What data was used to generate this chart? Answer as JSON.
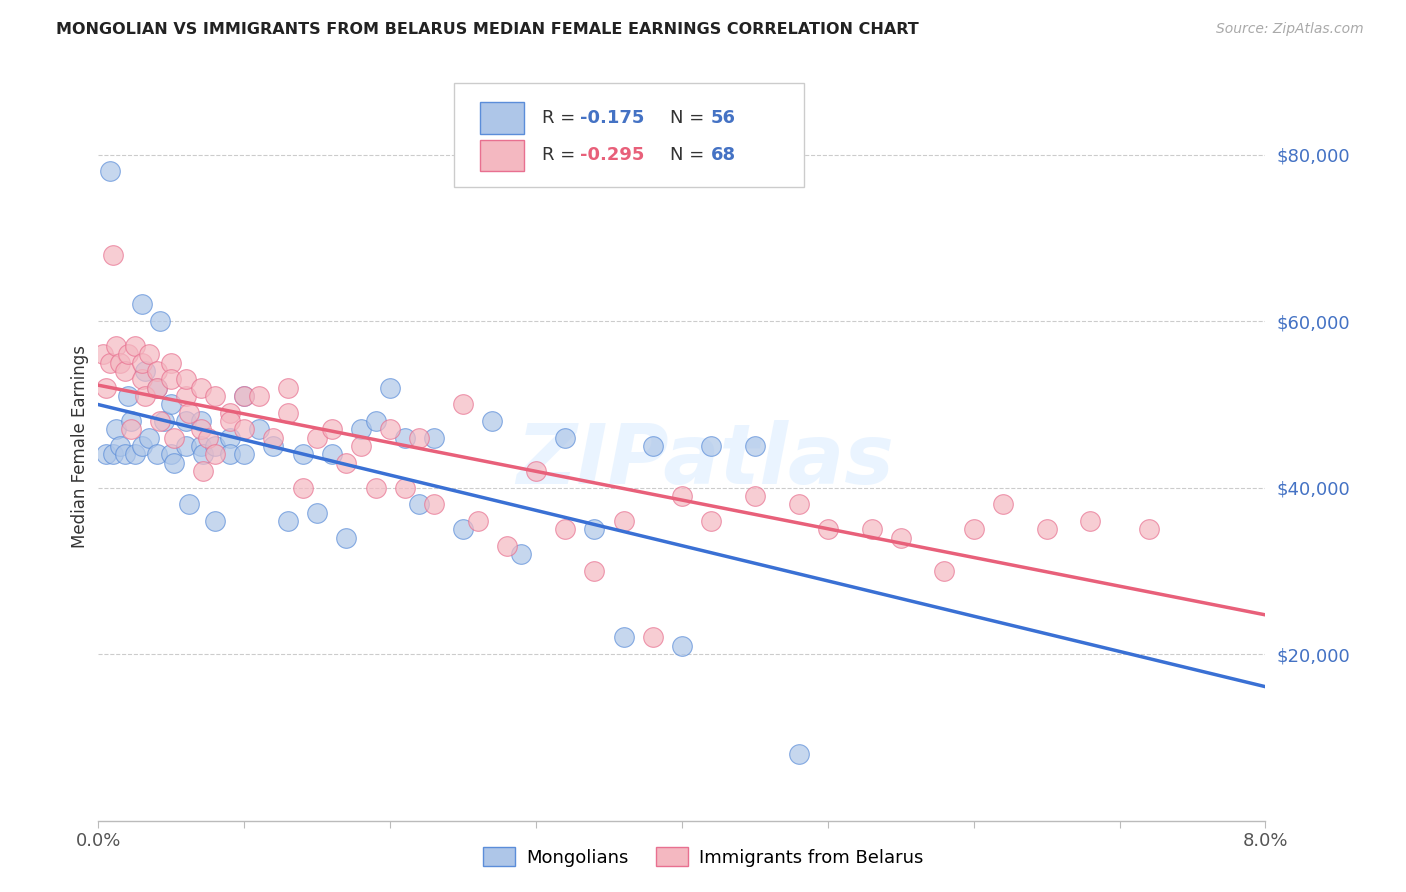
{
  "title": "MONGOLIAN VS IMMIGRANTS FROM BELARUS MEDIAN FEMALE EARNINGS CORRELATION CHART",
  "source": "Source: ZipAtlas.com",
  "ylabel": "Median Female Earnings",
  "xlim": [
    0.0,
    0.08
  ],
  "ylim": [
    0,
    90000
  ],
  "color_mongolian_fill": "#aec6e8",
  "color_mongolian_edge": "#5b8dd9",
  "color_belarus_fill": "#f4b8c1",
  "color_belarus_edge": "#e87090",
  "color_trend_mongolian": "#3a70d4",
  "color_trend_belarus": "#e8607a",
  "color_right_axis": "#4472c4",
  "watermark": "ZIPatlas",
  "legend_row1_R": "R = ",
  "legend_row1_Rval": "-0.175",
  "legend_row1_N": "N = ",
  "legend_row1_Nval": "56",
  "legend_row2_R": "R = ",
  "legend_row2_Rval": "-0.295",
  "legend_row2_N": "N = ",
  "legend_row2_Nval": "68",
  "mongolian_x": [
    0.0005,
    0.0008,
    0.001,
    0.0012,
    0.0015,
    0.0018,
    0.002,
    0.0022,
    0.0025,
    0.003,
    0.003,
    0.0032,
    0.0035,
    0.004,
    0.004,
    0.0042,
    0.0045,
    0.005,
    0.005,
    0.0052,
    0.006,
    0.006,
    0.0062,
    0.007,
    0.007,
    0.0072,
    0.008,
    0.008,
    0.009,
    0.009,
    0.01,
    0.01,
    0.011,
    0.012,
    0.013,
    0.014,
    0.015,
    0.016,
    0.017,
    0.018,
    0.019,
    0.02,
    0.021,
    0.022,
    0.023,
    0.025,
    0.027,
    0.029,
    0.032,
    0.034,
    0.036,
    0.038,
    0.04,
    0.042,
    0.045,
    0.048
  ],
  "mongolian_y": [
    44000,
    78000,
    44000,
    47000,
    45000,
    44000,
    51000,
    48000,
    44000,
    62000,
    45000,
    54000,
    46000,
    52000,
    44000,
    60000,
    48000,
    50000,
    44000,
    43000,
    48000,
    45000,
    38000,
    48000,
    45000,
    44000,
    45000,
    36000,
    46000,
    44000,
    51000,
    44000,
    47000,
    45000,
    36000,
    44000,
    37000,
    44000,
    34000,
    47000,
    48000,
    52000,
    46000,
    38000,
    46000,
    35000,
    48000,
    32000,
    46000,
    35000,
    22000,
    45000,
    21000,
    45000,
    45000,
    8000
  ],
  "belarus_x": [
    0.0003,
    0.0005,
    0.0008,
    0.001,
    0.0012,
    0.0015,
    0.0018,
    0.002,
    0.0022,
    0.0025,
    0.003,
    0.003,
    0.0032,
    0.0035,
    0.004,
    0.004,
    0.0042,
    0.005,
    0.005,
    0.0052,
    0.006,
    0.006,
    0.0062,
    0.007,
    0.007,
    0.0072,
    0.0075,
    0.008,
    0.008,
    0.009,
    0.009,
    0.01,
    0.01,
    0.011,
    0.012,
    0.013,
    0.013,
    0.014,
    0.015,
    0.016,
    0.017,
    0.018,
    0.019,
    0.02,
    0.021,
    0.022,
    0.023,
    0.025,
    0.026,
    0.028,
    0.03,
    0.032,
    0.034,
    0.036,
    0.038,
    0.04,
    0.042,
    0.045,
    0.048,
    0.05,
    0.053,
    0.055,
    0.058,
    0.06,
    0.062,
    0.065,
    0.068,
    0.072
  ],
  "belarus_y": [
    56000,
    52000,
    55000,
    68000,
    57000,
    55000,
    54000,
    56000,
    47000,
    57000,
    53000,
    55000,
    51000,
    56000,
    54000,
    52000,
    48000,
    55000,
    53000,
    46000,
    51000,
    53000,
    49000,
    52000,
    47000,
    42000,
    46000,
    51000,
    44000,
    49000,
    48000,
    51000,
    47000,
    51000,
    46000,
    52000,
    49000,
    40000,
    46000,
    47000,
    43000,
    45000,
    40000,
    47000,
    40000,
    46000,
    38000,
    50000,
    36000,
    33000,
    42000,
    35000,
    30000,
    36000,
    22000,
    39000,
    36000,
    39000,
    38000,
    35000,
    35000,
    34000,
    30000,
    35000,
    38000,
    35000,
    36000,
    35000
  ]
}
